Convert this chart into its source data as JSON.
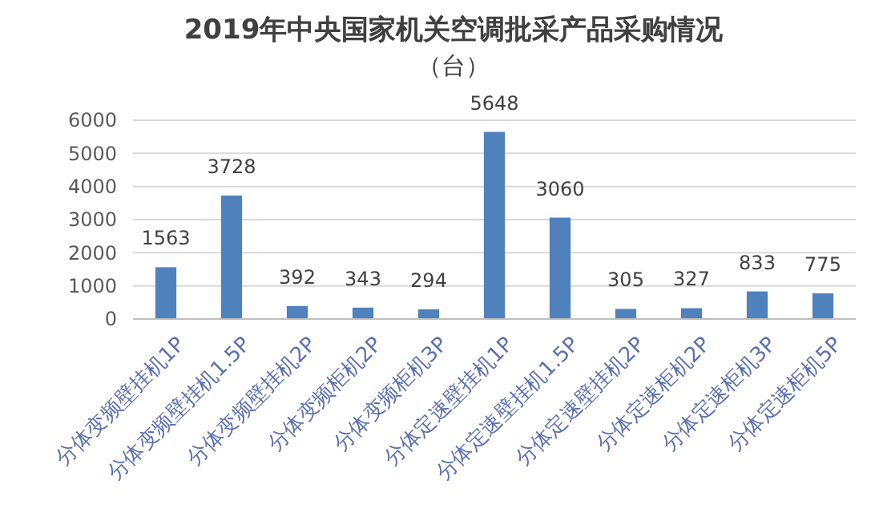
{
  "chart_data": {
    "type": "bar",
    "title": "2019年中央国家机关空调批采产品采购情况",
    "subtitle": "（台）",
    "categories": [
      "分体变频壁挂机1P",
      "分体变频壁挂机1.5P",
      "分体变频壁挂机2P",
      "分体变频柜机2P",
      "分体变频柜机3P",
      "分体定速壁挂机1P",
      "分体定速壁挂机1.5P",
      "分体定速壁挂机2P",
      "分体定速柜机2P",
      "分体定速柜机3P",
      "分体定速柜机5P"
    ],
    "values": [
      1563,
      3728,
      392,
      343,
      294,
      5648,
      3060,
      305,
      327,
      833,
      775
    ],
    "color": "#4f81bd",
    "ylim": [
      0,
      6000
    ],
    "yticks": [
      0,
      1000,
      2000,
      3000,
      4000,
      5000,
      6000
    ],
    "grid": "y",
    "data_labels": true
  }
}
